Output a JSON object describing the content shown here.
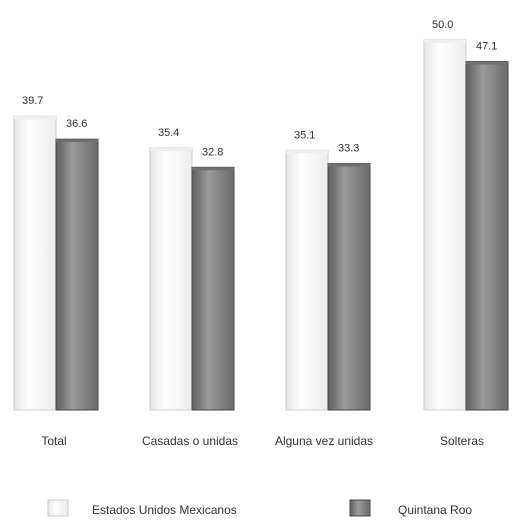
{
  "chart_data": {
    "type": "bar",
    "categories": [
      "Total",
      "Casadas o unidas",
      "Alguna vez unidas",
      "Solteras"
    ],
    "series": [
      {
        "name": "Estados Unidos Mexicanos",
        "values": [
          39.7,
          35.4,
          35.1,
          50.0
        ],
        "labels": [
          "39.7",
          "35.4",
          "35.1",
          "50.0"
        ],
        "color": "#f8f8f8"
      },
      {
        "name": "Quintana Roo",
        "values": [
          36.6,
          32.8,
          33.3,
          47.1
        ],
        "labels": [
          "36.6",
          "32.8",
          "33.3",
          "47.1"
        ],
        "color": "#8a8a8a"
      }
    ],
    "ylim": [
      0,
      50
    ],
    "grid": false,
    "legend": "bottom",
    "title": "",
    "xlabel": "",
    "ylabel": ""
  }
}
